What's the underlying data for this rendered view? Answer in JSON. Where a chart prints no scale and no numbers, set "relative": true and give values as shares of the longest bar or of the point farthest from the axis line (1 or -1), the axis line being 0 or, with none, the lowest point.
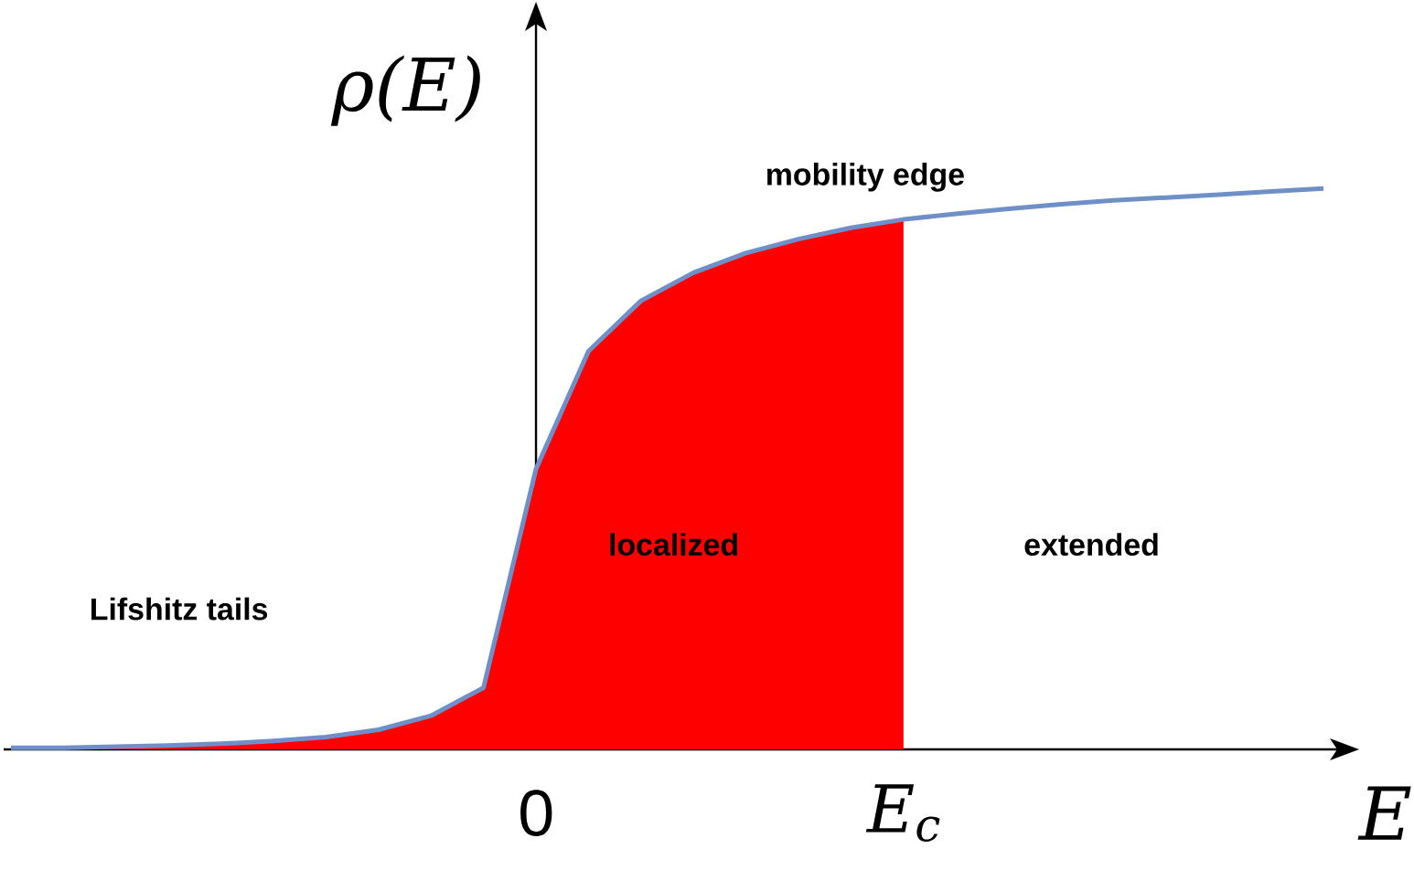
{
  "chart_data": {
    "type": "line",
    "relative": true,
    "xlabel": "E",
    "ylabel": "ρ(E)",
    "categories": [
      null,
      null,
      null,
      null,
      null,
      null,
      null,
      null,
      null,
      null,
      null,
      null,
      null,
      null,
      null,
      null,
      null,
      null,
      null,
      null,
      null,
      null,
      null,
      null,
      null,
      null
    ],
    "series": [
      {
        "type": "area",
        "color": "#ff0000",
        "values": [
          0.003,
          0.003,
          0.005,
          0.007,
          0.01,
          0.015,
          0.022,
          0.035,
          0.06,
          0.11,
          0.5,
          0.71,
          0.8,
          0.85,
          0.885,
          0.91,
          0.93,
          0.945,
          null,
          null,
          null,
          null,
          null,
          null,
          null,
          null
        ]
      },
      {
        "color": "#6f8fc8",
        "values": [
          0.003,
          0.003,
          0.005,
          0.007,
          0.01,
          0.015,
          0.022,
          0.035,
          0.06,
          0.11,
          0.5,
          0.71,
          0.8,
          0.85,
          0.885,
          0.91,
          0.93,
          0.945,
          0.955,
          0.964,
          0.972,
          0.979,
          0.984,
          0.989,
          0.995,
          1.0
        ]
      }
    ],
    "annotations": [
      "mobility edge",
      "localized",
      "extended",
      "Lifshitz tails",
      "0",
      "E$_{c}$"
    ],
    "marker": "none",
    "line_style": "solid"
  }
}
